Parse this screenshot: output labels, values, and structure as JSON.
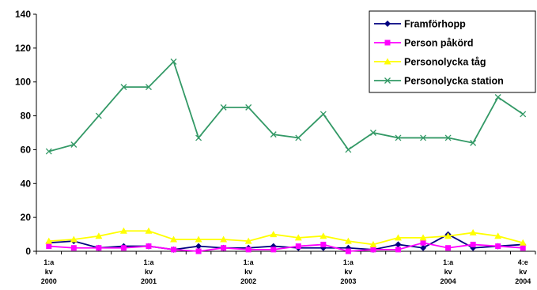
{
  "chart_data": {
    "type": "line",
    "categories": [
      "1:a kv 2000",
      null,
      null,
      null,
      "1:a kv 2001",
      null,
      null,
      null,
      "1:a kv 2002",
      null,
      null,
      null,
      "1:a kv 2003",
      null,
      null,
      null,
      "1:a kv 2004",
      null,
      null,
      "4:e kv 2004"
    ],
    "series": [
      {
        "name": "Framförhopp",
        "color": "#000080",
        "marker": "diamond",
        "values": [
          5,
          6,
          2,
          3,
          3,
          1,
          3,
          2,
          2,
          3,
          2,
          2,
          2,
          1,
          4,
          2,
          10,
          2,
          3,
          4
        ]
      },
      {
        "name": "Person påkörd",
        "color": "#ff00ff",
        "marker": "square",
        "values": [
          3,
          2,
          2,
          2,
          3,
          1,
          0,
          2,
          1,
          1,
          3,
          4,
          0,
          1,
          1,
          5,
          2,
          4,
          3,
          2
        ]
      },
      {
        "name": "Personolycka tåg",
        "color": "#ffff00",
        "marker": "triangle",
        "values": [
          6,
          7,
          9,
          12,
          12,
          7,
          7,
          7,
          6,
          10,
          8,
          9,
          6,
          4,
          8,
          8,
          9,
          11,
          9,
          5
        ]
      },
      {
        "name": "Personolycka station",
        "color": "#339966",
        "marker": "x",
        "values": [
          59,
          63,
          80,
          97,
          97,
          112,
          67,
          85,
          85,
          69,
          67,
          81,
          60,
          70,
          67,
          67,
          67,
          64,
          91,
          81
        ]
      }
    ],
    "ylim": [
      0,
      140
    ],
    "yticks": [
      0,
      20,
      40,
      60,
      80,
      100,
      120,
      140
    ],
    "grid": false,
    "legend": "top-right"
  }
}
